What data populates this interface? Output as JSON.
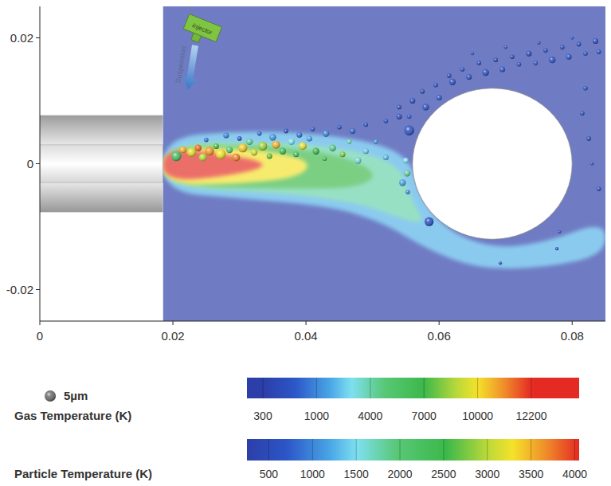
{
  "chart_data": {
    "type": "scatter",
    "xlim": [
      0,
      0.085
    ],
    "xticks": [
      0,
      0.02,
      0.04,
      0.06,
      0.08
    ],
    "ylim": [
      -0.025,
      0.025
    ],
    "yticks": [
      -0.02,
      0,
      0.02
    ],
    "x": [
      0.0205,
      0.0215,
      0.0228,
      0.0238,
      0.0245,
      0.0255,
      0.0265,
      0.0272,
      0.0285,
      0.0295,
      0.0305,
      0.0315,
      0.0322,
      0.0335,
      0.0345,
      0.0355,
      0.0365,
      0.0378,
      0.0385,
      0.0395,
      0.0405,
      0.0415,
      0.0428,
      0.044,
      0.0455,
      0.0465,
      0.0478,
      0.049,
      0.0505,
      0.052,
      0.025,
      0.028,
      0.03,
      0.033,
      0.035,
      0.037,
      0.039,
      0.041,
      0.043,
      0.045,
      0.047,
      0.049,
      0.0555,
      0.052,
      0.054,
      0.055,
      0.0552,
      0.0545,
      0.0553,
      0.0585,
      0.0692,
      0.0777,
      0.0781,
      0.054,
      0.056,
      0.0555,
      0.0575,
      0.058,
      0.0595,
      0.06,
      0.0615,
      0.062,
      0.0635,
      0.0645,
      0.066,
      0.067,
      0.0685,
      0.0695,
      0.071,
      0.072,
      0.0735,
      0.0745,
      0.076,
      0.077,
      0.0785,
      0.0795,
      0.081,
      0.082,
      0.0835,
      0.084,
      0.065,
      0.07,
      0.075,
      0.08,
      0.0815,
      0.0825,
      0.083,
      0.084,
      0.082
    ],
    "values": [
      0.0012,
      0.0022,
      0.0018,
      0.0025,
      0.001,
      0.002,
      0.0028,
      0.0015,
      0.0022,
      0.001,
      0.0025,
      0.0035,
      0.0018,
      0.0028,
      0.0012,
      0.003,
      0.002,
      0.0035,
      0.0015,
      0.0028,
      0.004,
      0.002,
      0.0008,
      0.0025,
      0.0015,
      0.0035,
      0.0005,
      0.002,
      0.0035,
      0.001,
      0.0038,
      0.0045,
      0.004,
      0.0048,
      0.0042,
      0.0052,
      0.0046,
      0.0055,
      0.0048,
      0.0058,
      0.0052,
      0.0062,
      0.0053,
      0.0068,
      0.0075,
      0.0005,
      -0.0015,
      -0.003,
      -0.0045,
      -0.0092,
      -0.0158,
      -0.0135,
      -0.0108,
      0.009,
      0.01,
      0.0075,
      0.0115,
      0.009,
      0.0125,
      0.0105,
      0.014,
      0.013,
      0.015,
      0.0138,
      0.016,
      0.0145,
      0.0165,
      0.015,
      0.017,
      0.0158,
      0.0175,
      0.016,
      0.018,
      0.0165,
      0.0185,
      0.017,
      0.019,
      0.0175,
      0.0195,
      0.0178,
      0.0175,
      0.0185,
      0.0192,
      0.02,
      0.008,
      0.004,
      0,
      -0.004,
      0.012
    ],
    "sizes": [
      4.5,
      3,
      4,
      3,
      3.5,
      4,
      2.5,
      4.5,
      3,
      3.5,
      4,
      3,
      3,
      4,
      2.5,
      3.5,
      3,
      3,
      2.5,
      3.5,
      2.5,
      3,
      2,
      3,
      2.5,
      2,
      3,
      2.5,
      2,
      2.5,
      2,
      2.5,
      2,
      2,
      3,
      2,
      2.5,
      2,
      3,
      2,
      2.5,
      2,
      4.5,
      2,
      2.5,
      2.5,
      3,
      3,
      2,
      4,
      1.5,
      1.5,
      1.5,
      2,
      2.5,
      2,
      2,
      3,
      2,
      2.5,
      2,
      3,
      2,
      2.5,
      2,
      3,
      2,
      2.5,
      2,
      2,
      2.5,
      2,
      2,
      3,
      2,
      2.5,
      2,
      2,
      2.5,
      2,
      1.5,
      1.5,
      1.5,
      1.5,
      2,
      2,
      1.5,
      2,
      2
    ],
    "temperatures": [
      2200,
      3500,
      3200,
      3800,
      3000,
      3600,
      2600,
      3300,
      2000,
      3700,
      3400,
      1800,
      3100,
      2900,
      2700,
      3500,
      2400,
      1500,
      2200,
      3200,
      1200,
      2500,
      2300,
      1900,
      2800,
      1700,
      1600,
      1400,
      1100,
      1300,
      900,
      1000,
      700,
      800,
      1100,
      600,
      900,
      700,
      1000,
      600,
      800,
      550,
      650,
      600,
      550,
      1500,
      1800,
      1200,
      1000,
      600,
      600,
      550,
      550,
      600,
      550,
      700,
      500,
      600,
      550,
      700,
      500,
      600,
      550,
      650,
      500,
      600,
      550,
      700,
      500,
      600,
      550,
      650,
      500,
      600,
      550,
      700,
      500,
      600,
      550,
      650,
      500,
      500,
      500,
      500,
      600,
      550,
      500,
      550,
      600
    ],
    "gas_field": {
      "ambient": 300,
      "contours": [
        {
          "temperature": 2000,
          "points": [
            [
              0.0185,
              0.0042
            ],
            [
              0.03,
              0.0052
            ],
            [
              0.042,
              0.0048
            ],
            [
              0.052,
              0.003
            ],
            [
              0.056,
              0.0
            ],
            [
              0.057,
              -0.005
            ],
            [
              0.061,
              -0.0105
            ],
            [
              0.068,
              -0.0135
            ],
            [
              0.076,
              -0.0125
            ],
            [
              0.085,
              -0.009
            ],
            [
              0.085,
              -0.0145
            ],
            [
              0.076,
              -0.0165
            ],
            [
              0.066,
              -0.0168
            ],
            [
              0.058,
              -0.0135
            ],
            [
              0.052,
              -0.0095
            ],
            [
              0.044,
              -0.0068
            ],
            [
              0.03,
              -0.0055
            ],
            [
              0.0185,
              -0.0045
            ]
          ]
        },
        {
          "temperature": 4000,
          "points": [
            [
              0.0185,
              0.0032
            ],
            [
              0.034,
              0.0036
            ],
            [
              0.046,
              0.0025
            ],
            [
              0.054,
              0.0
            ],
            [
              0.0555,
              -0.005
            ],
            [
              0.058,
              -0.0095
            ],
            [
              0.055,
              -0.009
            ],
            [
              0.048,
              -0.0062
            ],
            [
              0.036,
              -0.0046
            ],
            [
              0.0185,
              -0.0038
            ]
          ]
        },
        {
          "temperature": 7000,
          "points": [
            [
              0.0185,
              0.0029
            ],
            [
              0.034,
              0.003
            ],
            [
              0.045,
              0.0015
            ],
            [
              0.051,
              -0.0015
            ],
            [
              0.048,
              -0.0038
            ],
            [
              0.038,
              -0.004
            ],
            [
              0.0185,
              -0.0036
            ]
          ]
        },
        {
          "temperature": 10000,
          "points": [
            [
              0.0185,
              0.0027
            ],
            [
              0.033,
              0.0023
            ],
            [
              0.041,
              0.0005
            ],
            [
              0.039,
              -0.0022
            ],
            [
              0.03,
              -0.0032
            ],
            [
              0.0185,
              -0.0034
            ]
          ]
        },
        {
          "temperature": 12200,
          "points": [
            [
              0.0185,
              0.0025
            ],
            [
              0.027,
              0.0017
            ],
            [
              0.035,
              0.0
            ],
            [
              0.03,
              -0.0017
            ],
            [
              0.0185,
              -0.003
            ]
          ]
        }
      ]
    },
    "torch": {
      "exit_x": 0.0185,
      "outer_radius": 0.0077,
      "inner_radius": 0.003
    },
    "cylinder": {
      "center": [
        0.068,
        0
      ],
      "radius": 0.012
    },
    "annotations": {
      "injector": "Injector",
      "suspension": "Suspension"
    },
    "size_legend": {
      "value": 5,
      "label": "5µm"
    },
    "gas_colorbar": {
      "label": "Gas Temperature (K)",
      "ticks": [
        300,
        1000,
        4000,
        7000,
        10000,
        12200
      ]
    },
    "particle_colorbar": {
      "label": "Particle Temperature (K)",
      "range": [
        250,
        4050
      ],
      "ticks": [
        500,
        1000,
        1500,
        2000,
        2500,
        3000,
        3500,
        4000
      ]
    }
  }
}
